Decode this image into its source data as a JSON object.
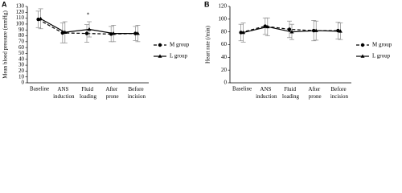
{
  "chart_data": [
    {
      "type": "line",
      "title": "A",
      "y_label": "Mean blood pressure (mmHg)",
      "categories": [
        "Baseline",
        "ANS induction",
        "Fluid loading",
        "After prone",
        "Before incision"
      ],
      "ylim": [
        0,
        130
      ],
      "yticks": [
        0,
        10,
        20,
        30,
        40,
        50,
        60,
        70,
        80,
        90,
        100,
        110,
        120,
        130
      ],
      "legend": "right",
      "annotations": [
        {
          "text": "*",
          "category": 2,
          "y": 115
        }
      ],
      "series": [
        {
          "name": "M group",
          "color": "#000000",
          "dashed": true,
          "marker": "circle",
          "values": [
            108,
            85,
            84,
            83,
            84
          ],
          "errors": [
            14,
            17,
            15,
            13,
            12
          ]
        },
        {
          "name": "L group",
          "color": "#000000",
          "dashed": false,
          "marker": "triangle",
          "values": [
            109,
            86,
            91,
            84,
            84
          ],
          "errors": [
            17,
            18,
            13,
            14,
            14
          ]
        }
      ]
    },
    {
      "type": "line",
      "title": "B",
      "y_label": "Heart rate (/min)",
      "categories": [
        "Baseline",
        "ANS induction",
        "Fluid loading",
        "After prone",
        "Before incision"
      ],
      "ylim": [
        0,
        120
      ],
      "yticks": [
        0,
        20,
        40,
        60,
        80,
        100,
        120
      ],
      "legend": "right",
      "annotations": [],
      "series": [
        {
          "name": "M group",
          "color": "#000000",
          "dashed": true,
          "marker": "circle",
          "values": [
            79,
            89,
            84,
            82,
            82
          ],
          "errors": [
            13,
            13,
            13,
            16,
            13
          ]
        },
        {
          "name": "L group",
          "color": "#000000",
          "dashed": false,
          "marker": "triangle",
          "values": [
            79,
            88,
            80,
            82,
            81
          ],
          "errors": [
            15,
            14,
            12,
            15,
            13
          ]
        }
      ]
    }
  ]
}
